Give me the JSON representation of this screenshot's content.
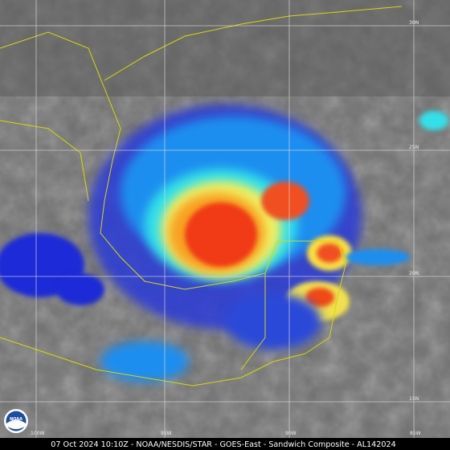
{
  "caption": "07 Oct 2024 10:10Z - NOAA/NESDIS/STAR - GOES-East - Sandwich Composite - AL142024",
  "logo": "NOAA",
  "lat_labels": [
    "30N",
    "25N",
    "20N",
    "15N"
  ],
  "lon_labels": [
    "100W",
    "95W",
    "90W",
    "85W"
  ]
}
